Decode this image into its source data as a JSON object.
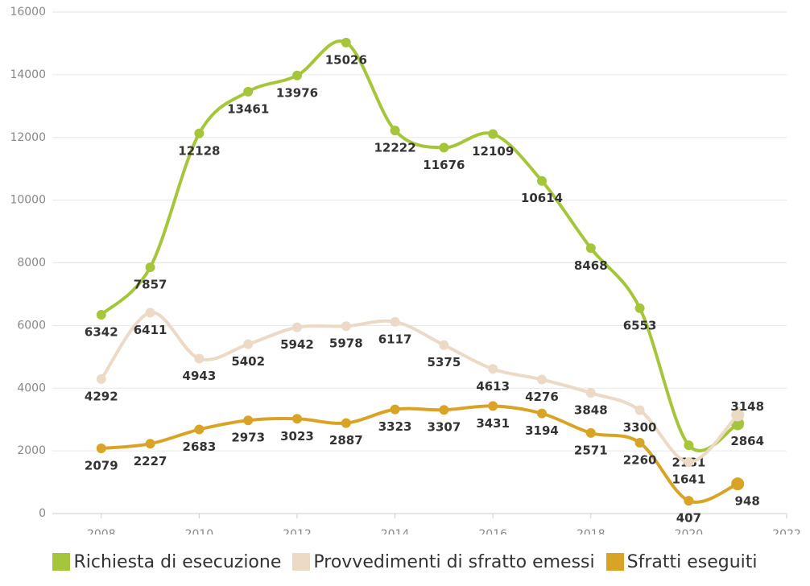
{
  "chart_data": {
    "type": "line",
    "x": [
      2008,
      2009,
      2010,
      2011,
      2012,
      2013,
      2014,
      2015,
      2016,
      2017,
      2018,
      2019,
      2020,
      2021
    ],
    "series": [
      {
        "name": "Richiesta di esecuzione",
        "color": "#a5c63b",
        "values": [
          6342,
          7857,
          12128,
          13461,
          13976,
          15026,
          12222,
          11676,
          12109,
          10614,
          8468,
          6553,
          2181,
          2864
        ]
      },
      {
        "name": "Provvedimenti di sfratto emessi",
        "color": "#ecd9c6",
        "values": [
          4292,
          6411,
          4943,
          5402,
          5942,
          5978,
          6117,
          5375,
          4613,
          4276,
          3848,
          3300,
          1641,
          3148
        ]
      },
      {
        "name": "Sfratti eseguiti",
        "color": "#d9a425",
        "values": [
          2079,
          2227,
          2683,
          2973,
          3023,
          2887,
          3323,
          3307,
          3431,
          3194,
          2571,
          2260,
          407,
          948
        ]
      }
    ],
    "xlim": [
      2007,
      2022
    ],
    "xticks": [
      2008,
      2010,
      2012,
      2014,
      2016,
      2018,
      2020,
      2022
    ],
    "ylim": [
      0,
      16000
    ],
    "yticks": [
      0,
      2000,
      4000,
      6000,
      8000,
      10000,
      12000,
      14000,
      16000
    ],
    "grid": true,
    "legend": "bottom"
  }
}
